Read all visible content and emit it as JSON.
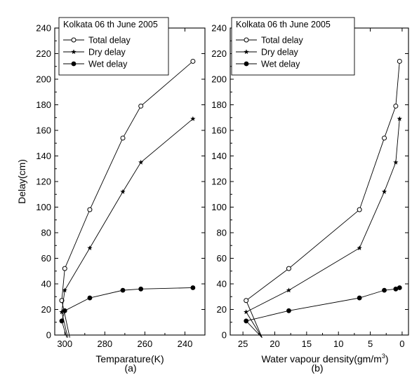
{
  "chart_data": [
    {
      "type": "line",
      "panel_label": "(a)",
      "title": "",
      "xlabel": "Temparature(K)",
      "ylabel": "Delay(cm)",
      "xlim": [
        305,
        230
      ],
      "ylim": [
        0,
        240
      ],
      "x_reversed": true,
      "xticks": [
        300,
        280,
        260,
        240
      ],
      "yticks": [
        0,
        20,
        40,
        60,
        80,
        100,
        120,
        140,
        160,
        180,
        200,
        220,
        240
      ],
      "grid": false,
      "legend": {
        "title": "Kolkata 06 th June 2005",
        "position": "top-left"
      },
      "series": [
        {
          "name": "Total delay",
          "marker": "open-circle",
          "points": [
            [
              297.5,
              -2
            ],
            [
              301.5,
              27
            ],
            [
              300,
              52
            ],
            [
              287.5,
              98
            ],
            [
              271,
              154
            ],
            [
              262,
              179
            ],
            [
              236,
              214
            ]
          ]
        },
        {
          "name": "Dry delay",
          "marker": "star",
          "points": [
            [
              298.5,
              -2
            ],
            [
              301.5,
              18
            ],
            [
              300,
              35
            ],
            [
              287.5,
              68
            ],
            [
              271,
              112
            ],
            [
              262,
              135
            ],
            [
              236,
              169
            ]
          ]
        },
        {
          "name": "Wet delay",
          "marker": "filled-circle",
          "points": [
            [
              299,
              -2
            ],
            [
              301.5,
              11
            ],
            [
              300,
              19
            ],
            [
              287.5,
              29
            ],
            [
              271,
              35
            ],
            [
              262,
              36
            ],
            [
              236,
              37
            ]
          ]
        }
      ]
    },
    {
      "type": "line",
      "panel_label": "(b)",
      "title": "",
      "xlabel": "Water vapour density(gm/m",
      "xlabel_superscript": "3",
      "xlabel_suffix": ")",
      "ylabel": "",
      "xlim": [
        27,
        -1
      ],
      "ylim": [
        0,
        240
      ],
      "x_reversed": true,
      "xticks": [
        25,
        20,
        15,
        10,
        5,
        0
      ],
      "yticks": [
        0,
        20,
        40,
        60,
        80,
        100,
        120,
        140,
        160,
        180,
        200,
        220,
        240
      ],
      "grid": false,
      "legend": {
        "title": "Kolkata 06 th June 2005",
        "position": "top-left"
      },
      "series": [
        {
          "name": "Total delay",
          "marker": "open-circle",
          "points": [
            [
              22,
              -2
            ],
            [
              24.5,
              27
            ],
            [
              17.8,
              52
            ],
            [
              6.7,
              98
            ],
            [
              2.8,
              154
            ],
            [
              1,
              179
            ],
            [
              0.4,
              214
            ]
          ]
        },
        {
          "name": "Dry delay",
          "marker": "star",
          "points": [
            [
              22,
              -2
            ],
            [
              24.5,
              18
            ],
            [
              17.8,
              35
            ],
            [
              6.7,
              68
            ],
            [
              2.8,
              112
            ],
            [
              1,
              135
            ],
            [
              0.4,
              169
            ]
          ]
        },
        {
          "name": "Wet delay",
          "marker": "filled-circle",
          "points": [
            [
              22,
              -2
            ],
            [
              24.5,
              11
            ],
            [
              17.8,
              19
            ],
            [
              6.7,
              29
            ],
            [
              2.8,
              35
            ],
            [
              1,
              36
            ],
            [
              0.4,
              37
            ]
          ]
        }
      ]
    }
  ]
}
